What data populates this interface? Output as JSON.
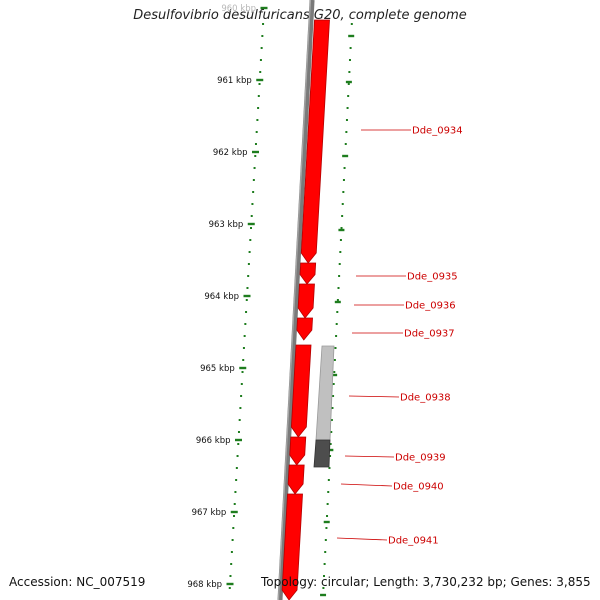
{
  "title": "Desulfovibrio desulfuricans G20, complete genome",
  "footer": {
    "accession": "Accession: NC_007519",
    "summary": "Topology: circular; Length: 3,730,232 bp; Genes: 3,855"
  },
  "scale": {
    "labels": [
      "960 kbp",
      "961 kbp",
      "962 kbp",
      "963 kbp",
      "964 kbp",
      "965 kbp",
      "966 kbp",
      "967 kbp",
      "968 kbp"
    ]
  },
  "genes": [
    {
      "id": "Dde_0934",
      "strand": "+"
    },
    {
      "id": "Dde_0935",
      "strand": "+"
    },
    {
      "id": "Dde_0936",
      "strand": "+"
    },
    {
      "id": "Dde_0937",
      "strand": "+"
    },
    {
      "id": "Dde_0938",
      "strand": "+"
    },
    {
      "id": "Dde_0939",
      "strand": "+"
    },
    {
      "id": "Dde_0940",
      "strand": "+"
    },
    {
      "id": "Dde_0941",
      "strand": "+"
    }
  ],
  "colors": {
    "gene": "#ff0000",
    "gene_edge": "#b40000",
    "label": "#cc0000",
    "ticks": "#1e7d1e",
    "backbone": "#7a7a7a",
    "feature_light": "#c0c0c0",
    "feature_dark": "#4d4d4d"
  }
}
